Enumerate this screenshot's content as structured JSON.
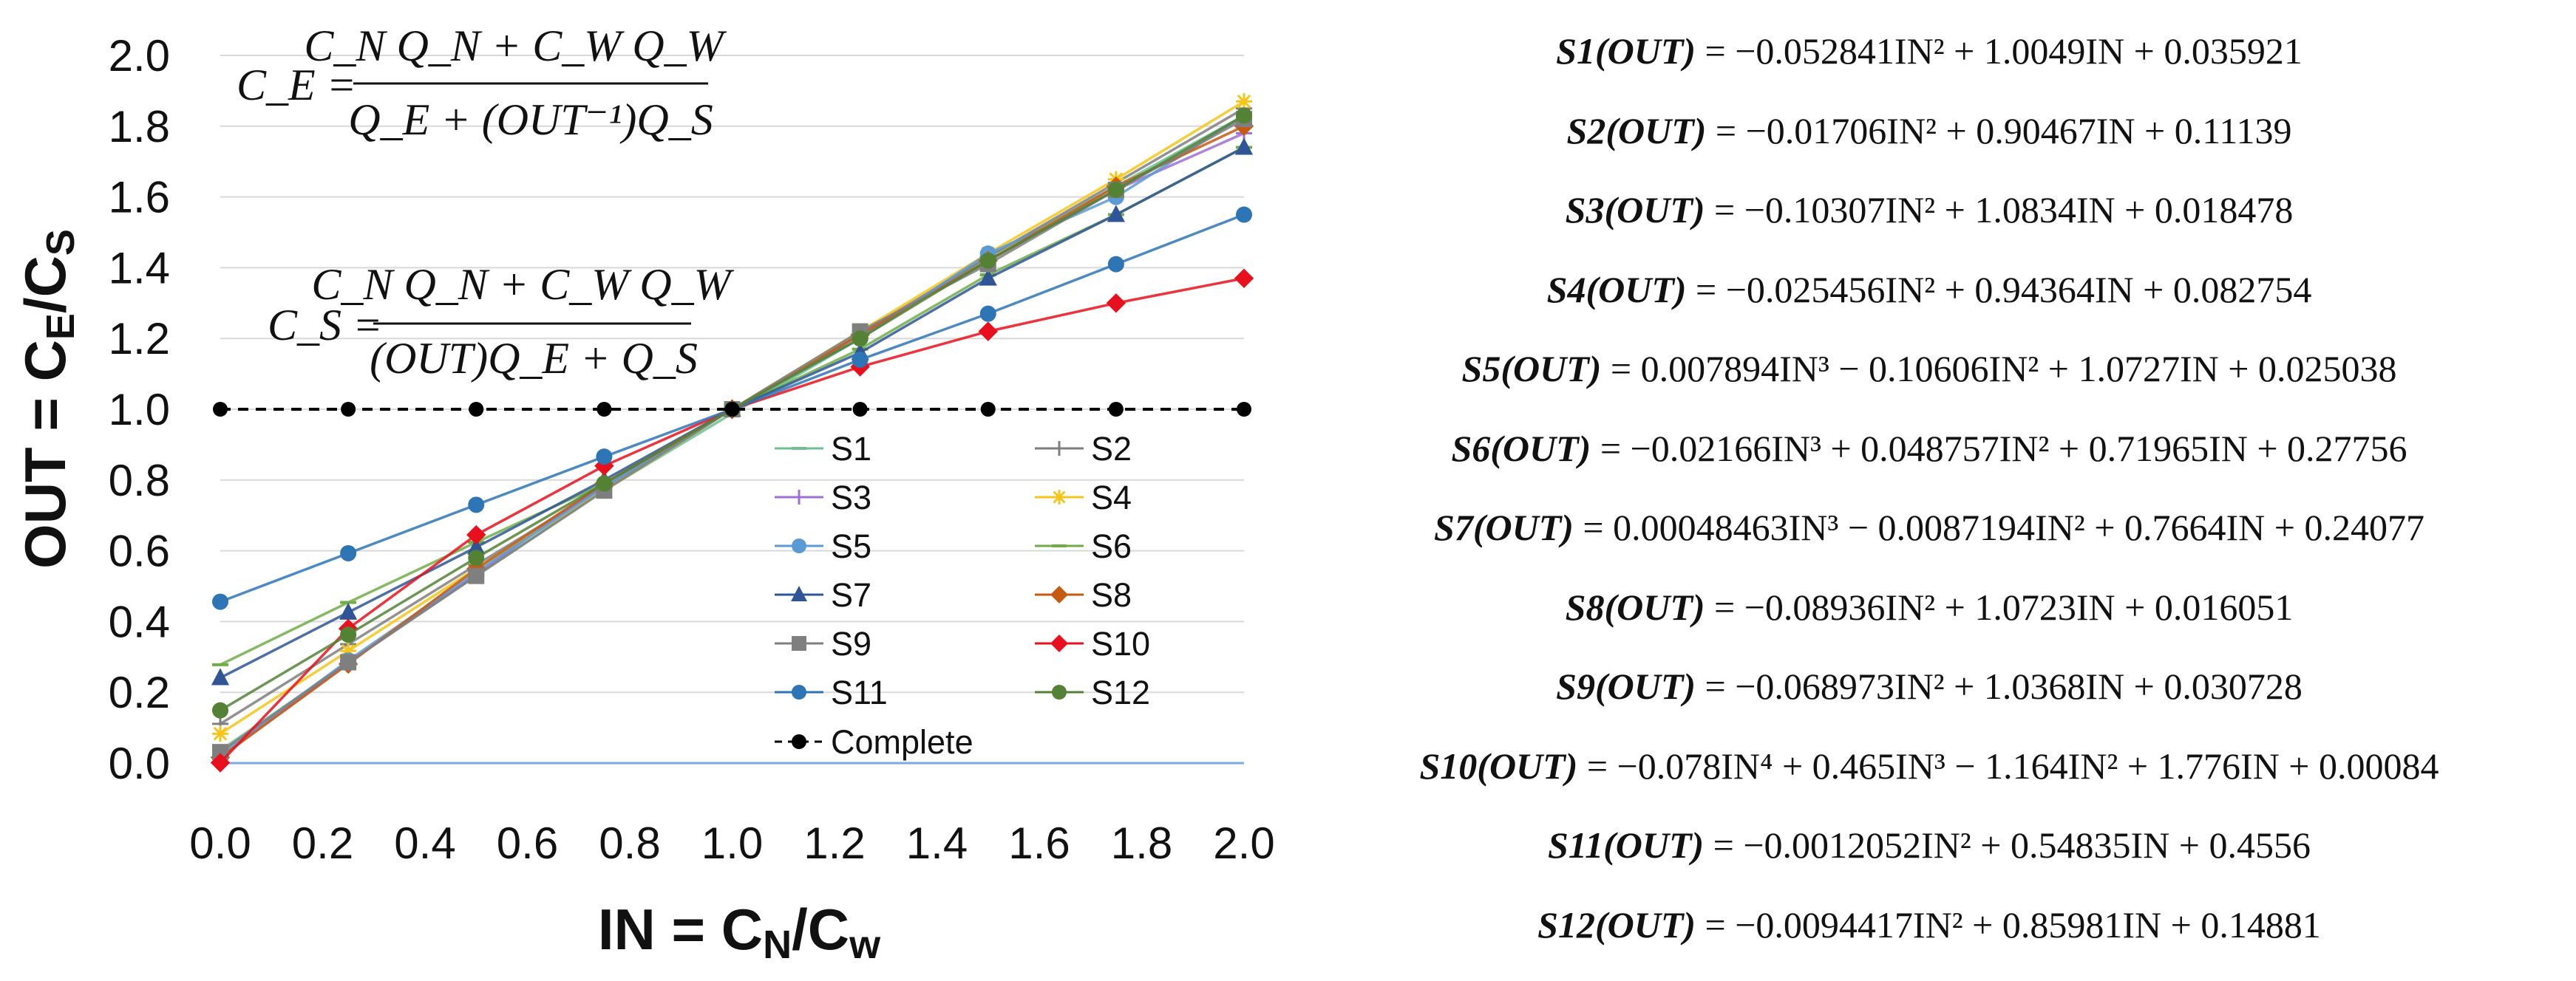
{
  "colors": {
    "S1": "#6fbf90",
    "S2": "#7f7f7f",
    "S3": "#9e6fd6",
    "S4": "#f5c518",
    "S5": "#5b9bd5",
    "S6": "#70ad47",
    "S7": "#2f5597",
    "S8": "#c55a11",
    "S9": "#7f7f7f",
    "S10": "#e8101c",
    "S11": "#2e75b6",
    "S12": "#548235",
    "Complete": "#000000",
    "grid": "#d9d9d9",
    "zero_line": "#7fa7e0"
  },
  "chart_data": {
    "type": "line",
    "xlabel": "IN = C_N/C_w",
    "ylabel": "OUT = C_E/C_S",
    "xlim": [
      0.0,
      2.0
    ],
    "ylim": [
      0.0,
      2.0
    ],
    "x_ticks": [
      "0.0",
      "0.2",
      "0.4",
      "0.6",
      "0.8",
      "1.0",
      "1.2",
      "1.4",
      "1.6",
      "1.8",
      "2.0"
    ],
    "y_ticks": [
      "0.0",
      "0.2",
      "0.4",
      "0.6",
      "0.8",
      "1.0",
      "1.2",
      "1.4",
      "1.6",
      "1.8",
      "2.0"
    ],
    "grid": "horizontal",
    "legend_position": "bottom-center",
    "x": [
      0,
      0.25,
      0.5,
      0.75,
      1.0,
      1.25,
      1.5,
      1.75,
      2.0
    ],
    "series": [
      {
        "name": "S1",
        "marker": "dash",
        "values": [
          0.036,
          0.284,
          0.53,
          0.771,
          0.988,
          1.2,
          1.43,
          1.63,
          1.83
        ]
      },
      {
        "name": "S2",
        "marker": "plus",
        "values": [
          0.111,
          0.336,
          0.56,
          0.78,
          1.0,
          1.215,
          1.43,
          1.64,
          1.85
        ]
      },
      {
        "name": "S3",
        "marker": "plus",
        "values": [
          0.018,
          0.283,
          0.534,
          0.79,
          1.0,
          1.211,
          1.42,
          1.62,
          1.78
        ]
      },
      {
        "name": "S4",
        "marker": "star",
        "values": [
          0.083,
          0.317,
          0.55,
          0.77,
          1.0,
          1.22,
          1.44,
          1.65,
          1.87
        ]
      },
      {
        "name": "S5",
        "marker": "circle",
        "values": [
          0.025,
          0.29,
          0.54,
          0.78,
          1.0,
          1.2,
          1.44,
          1.6,
          1.83
        ]
      },
      {
        "name": "S6",
        "marker": "dash",
        "values": [
          0.278,
          0.454,
          0.624,
          0.79,
          1.0,
          1.17,
          1.38,
          1.55,
          1.74
        ]
      },
      {
        "name": "S7",
        "marker": "triangle",
        "values": [
          0.241,
          0.426,
          0.61,
          0.8,
          1.0,
          1.16,
          1.37,
          1.55,
          1.74
        ]
      },
      {
        "name": "S8",
        "marker": "diamond",
        "values": [
          0.016,
          0.28,
          0.549,
          0.79,
          1.0,
          1.21,
          1.42,
          1.63,
          1.8
        ]
      },
      {
        "name": "S9",
        "marker": "square",
        "values": [
          0.031,
          0.285,
          0.529,
          0.77,
          1.0,
          1.22,
          1.41,
          1.62,
          1.82
        ]
      },
      {
        "name": "S10",
        "marker": "diamond",
        "values": [
          0.001,
          0.38,
          0.645,
          0.84,
          1.0,
          1.12,
          1.22,
          1.3,
          1.37
        ]
      },
      {
        "name": "S11",
        "marker": "circle",
        "values": [
          0.456,
          0.593,
          0.73,
          0.866,
          1.0,
          1.14,
          1.27,
          1.41,
          1.55
        ]
      },
      {
        "name": "S12",
        "marker": "circle",
        "values": [
          0.149,
          0.363,
          0.58,
          0.79,
          1.0,
          1.2,
          1.42,
          1.62,
          1.83
        ]
      },
      {
        "name": "Complete",
        "marker": "circle",
        "style": "dashed",
        "values": [
          1,
          1,
          1,
          1,
          1,
          1,
          1,
          1,
          1
        ]
      }
    ],
    "annotations": {
      "ce_formula": {
        "lhs": "C_E =",
        "numerator": "C_N Q_N + C_W Q_W",
        "denominator": "Q_E + (OUT⁻¹)Q_S"
      },
      "cs_formula": {
        "lhs": "C_S =",
        "numerator": "C_N Q_N + C_W Q_W",
        "denominator": "(OUT)Q_E + Q_S"
      }
    }
  },
  "regression_equations": [
    {
      "label": "S1(OUT)",
      "text": "= −0.052841IN² + 1.0049IN + 0.035921"
    },
    {
      "label": "S2(OUT)",
      "text": "= −0.01706IN² + 0.90467IN + 0.11139"
    },
    {
      "label": "S3(OUT)",
      "text": "= −0.10307IN² + 1.0834IN + 0.018478"
    },
    {
      "label": "S4(OUT)",
      "text": "= −0.025456IN² + 0.94364IN + 0.082754"
    },
    {
      "label": "S5(OUT)",
      "text": "= 0.007894IN³ − 0.10606IN² + 1.0727IN + 0.025038"
    },
    {
      "label": "S6(OUT)",
      "text": "= −0.02166IN³ + 0.048757IN² + 0.71965IN + 0.27756"
    },
    {
      "label": "S7(OUT)",
      "text": "= 0.00048463IN³ − 0.0087194IN² + 0.7664IN + 0.24077"
    },
    {
      "label": "S8(OUT)",
      "text": "= −0.08936IN² + 1.0723IN + 0.016051"
    },
    {
      "label": "S9(OUT)",
      "text": "= −0.068973IN² + 1.0368IN + 0.030728"
    },
    {
      "label": "S10(OUT)",
      "text": "= −0.078IN⁴ + 0.465IN³ − 1.164IN² + 1.776IN + 0.00084"
    },
    {
      "label": "S11(OUT)",
      "text": "= −0.0012052IN² + 0.54835IN + 0.4556"
    },
    {
      "label": "S12(OUT)",
      "text": "= −0.0094417IN² + 0.85981IN + 0.14881"
    }
  ]
}
